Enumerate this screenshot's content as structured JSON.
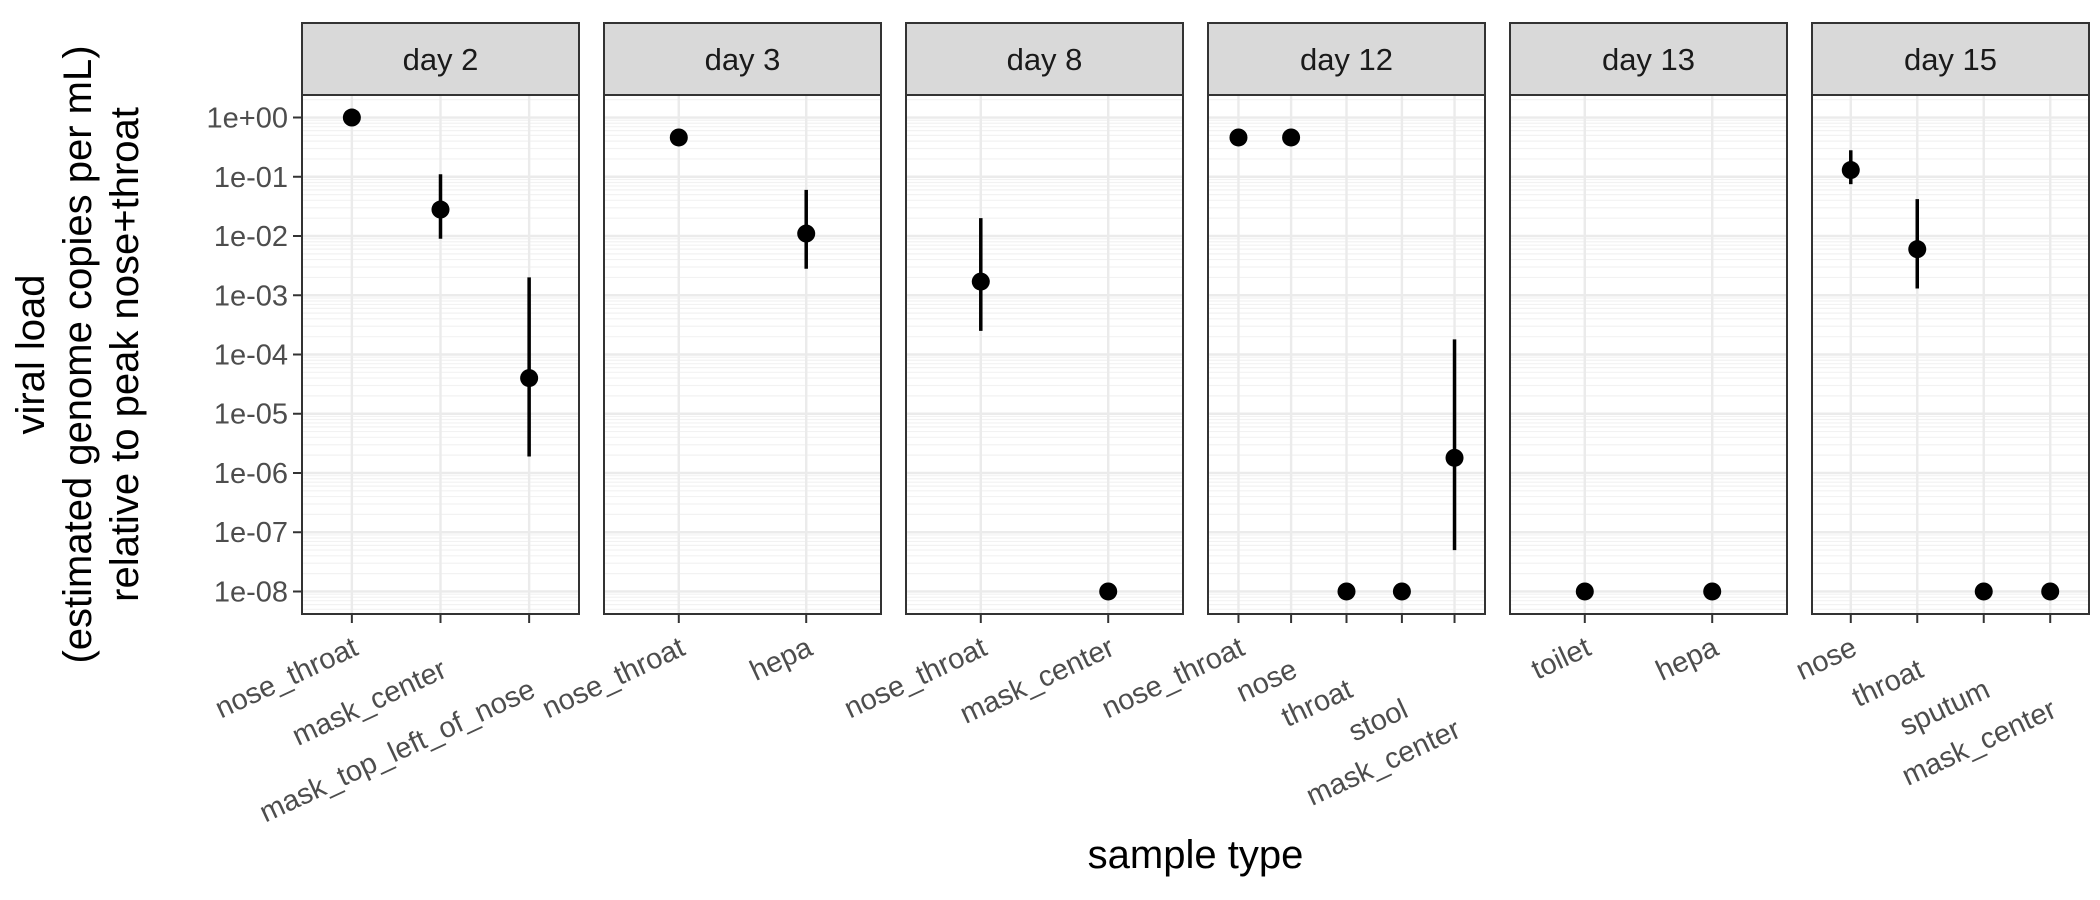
{
  "chart_data": {
    "type": "scatter",
    "scale": "log10",
    "ylim": [
      1e-08,
      1
    ],
    "grid": true,
    "xlabel": "sample type",
    "ylabel_lines": [
      "viral load",
      "(estimated genome copies per mL)",
      "relative to peak nose+throat"
    ],
    "y_ticks": [
      {
        "value": 1,
        "label": "1e+00"
      },
      {
        "value": 0.1,
        "label": "1e-01"
      },
      {
        "value": 0.01,
        "label": "1e-02"
      },
      {
        "value": 0.001,
        "label": "1e-03"
      },
      {
        "value": 0.0001,
        "label": "1e-04"
      },
      {
        "value": 1e-05,
        "label": "1e-05"
      },
      {
        "value": 1e-06,
        "label": "1e-06"
      },
      {
        "value": 1e-07,
        "label": "1e-07"
      },
      {
        "value": 1e-08,
        "label": "1e-08"
      }
    ],
    "panels": [
      {
        "title": "day 2",
        "categories": [
          "nose_throat",
          "mask_center",
          "mask_top_left_of_nose"
        ],
        "points": [
          {
            "category": "nose_throat",
            "y": 1.0
          },
          {
            "category": "mask_center",
            "y": 0.028,
            "ymin": 0.009,
            "ymax": 0.11
          },
          {
            "category": "mask_top_left_of_nose",
            "y": 4e-05,
            "ymin": 1.9e-06,
            "ymax": 0.002
          }
        ]
      },
      {
        "title": "day 3",
        "categories": [
          "nose_throat",
          "hepa"
        ],
        "points": [
          {
            "category": "nose_throat",
            "y": 0.46
          },
          {
            "category": "hepa",
            "y": 0.011,
            "ymin": 0.0028,
            "ymax": 0.06
          }
        ]
      },
      {
        "title": "day 8",
        "categories": [
          "nose_throat",
          "mask_center"
        ],
        "points": [
          {
            "category": "nose_throat",
            "y": 0.0017,
            "ymin": 0.00025,
            "ymax": 0.02
          },
          {
            "category": "mask_center",
            "y": 1e-08
          }
        ]
      },
      {
        "title": "day 12",
        "categories": [
          "nose_throat",
          "nose",
          "throat",
          "stool",
          "mask_center"
        ],
        "points": [
          {
            "category": "nose_throat",
            "y": 0.46
          },
          {
            "category": "nose",
            "y": 0.46
          },
          {
            "category": "throat",
            "y": 1e-08
          },
          {
            "category": "stool",
            "y": 1e-08
          },
          {
            "category": "mask_center",
            "y": 1.8e-06,
            "ymin": 5e-08,
            "ymax": 0.00018
          }
        ]
      },
      {
        "title": "day 13",
        "categories": [
          "toilet",
          "hepa"
        ],
        "points": [
          {
            "category": "toilet",
            "y": 1e-08
          },
          {
            "category": "hepa",
            "y": 1e-08
          }
        ]
      },
      {
        "title": "day 15",
        "categories": [
          "nose",
          "throat",
          "sputum",
          "mask_center"
        ],
        "points": [
          {
            "category": "nose",
            "y": 0.13,
            "ymin": 0.075,
            "ymax": 0.28
          },
          {
            "category": "throat",
            "y": 0.006,
            "ymin": 0.0013,
            "ymax": 0.042
          },
          {
            "category": "sputum",
            "y": 1e-08
          },
          {
            "category": "mask_center",
            "y": 1e-08
          }
        ]
      }
    ],
    "colors": {
      "point": "#000000",
      "strip_fill": "#d9d9d9",
      "panel_border": "#333333",
      "grid_major": "#ebebeb",
      "grid_minor": "#f2f2f2",
      "tick_text": "#4d4d4d"
    }
  }
}
